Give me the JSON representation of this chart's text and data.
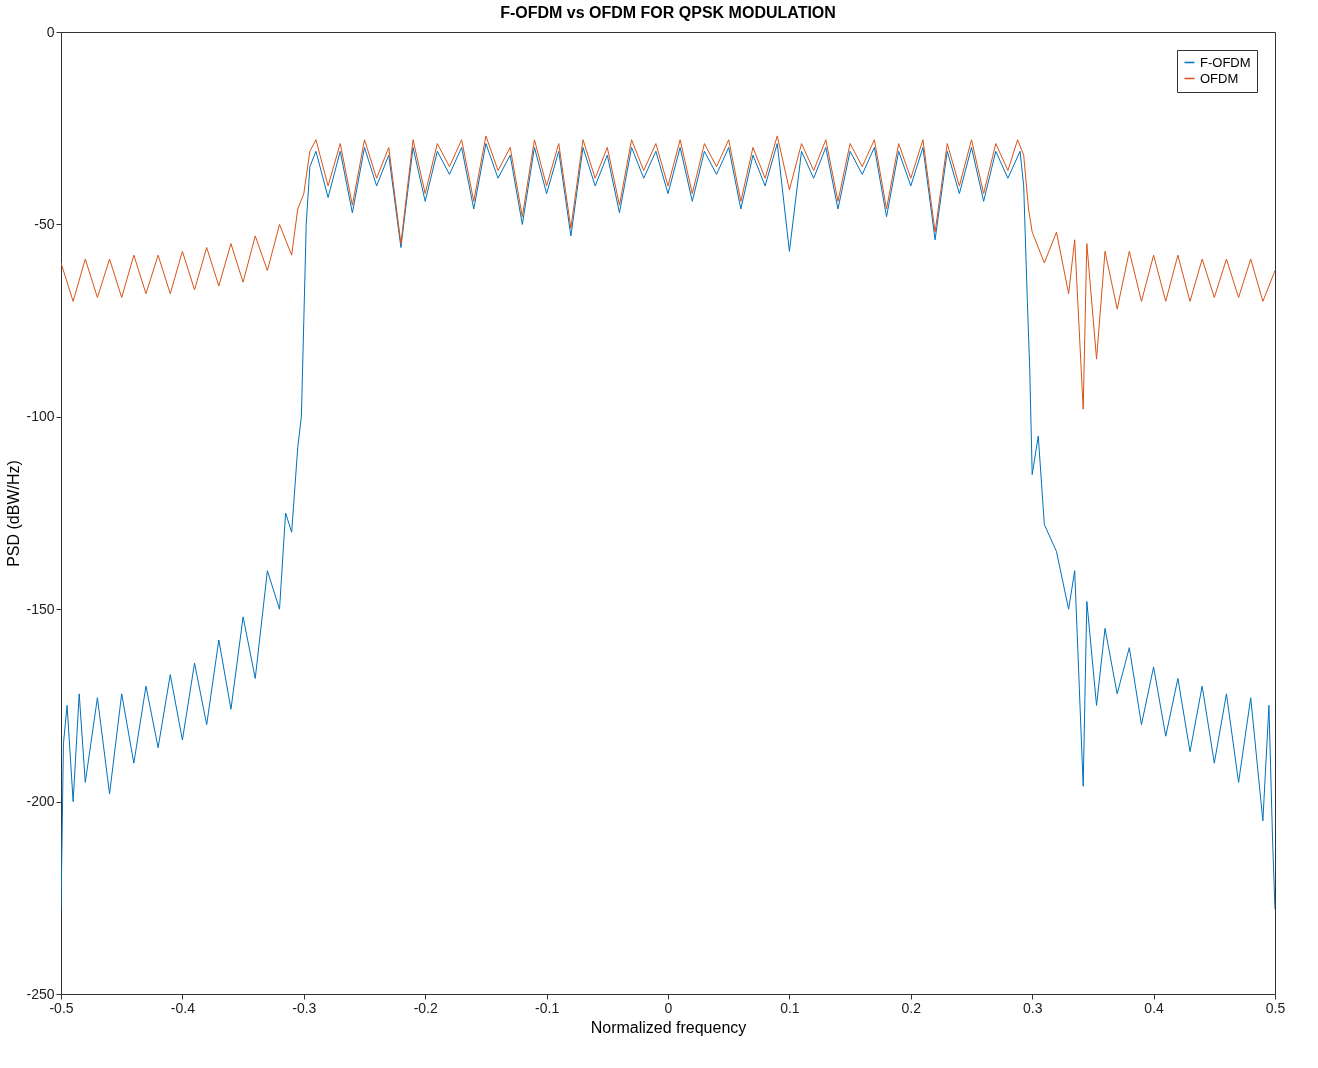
{
  "chart_data": {
    "type": "line",
    "title": "F-OFDM vs OFDM FOR QPSK MODULATION",
    "xlabel": "Normalized frequency",
    "ylabel": "PSD (dBW/Hz)",
    "xlim": [
      -0.5,
      0.5
    ],
    "xticks": [
      -0.5,
      -0.4,
      -0.3,
      -0.2,
      -0.1,
      0,
      0.1,
      0.2,
      0.3,
      0.4,
      0.5
    ],
    "ylim": [
      -250,
      0
    ],
    "yticks": [
      -250,
      -200,
      -150,
      -100,
      -50,
      0
    ],
    "grid": false,
    "legend": "top right",
    "line_style": "solid",
    "series": [
      {
        "name": "F-OFDM",
        "color": "#0072bd",
        "x": [
          -0.5,
          -0.498,
          -0.495,
          -0.49,
          -0.485,
          -0.48,
          -0.47,
          -0.46,
          -0.45,
          -0.44,
          -0.43,
          -0.42,
          -0.41,
          -0.4,
          -0.39,
          -0.38,
          -0.37,
          -0.36,
          -0.35,
          -0.34,
          -0.33,
          -0.32,
          -0.315,
          -0.31,
          -0.305,
          -0.302,
          -0.3,
          -0.298,
          -0.295,
          -0.29,
          -0.28,
          -0.27,
          -0.26,
          -0.25,
          -0.24,
          -0.23,
          -0.22,
          -0.21,
          -0.2,
          -0.19,
          -0.18,
          -0.17,
          -0.16,
          -0.15,
          -0.14,
          -0.13,
          -0.12,
          -0.11,
          -0.1,
          -0.09,
          -0.08,
          -0.07,
          -0.06,
          -0.05,
          -0.04,
          -0.03,
          -0.02,
          -0.01,
          0,
          0.01,
          0.02,
          0.03,
          0.04,
          0.05,
          0.06,
          0.07,
          0.08,
          0.09,
          0.1,
          0.11,
          0.12,
          0.13,
          0.14,
          0.15,
          0.16,
          0.17,
          0.18,
          0.19,
          0.2,
          0.21,
          0.22,
          0.23,
          0.24,
          0.25,
          0.26,
          0.27,
          0.28,
          0.29,
          0.293,
          0.296,
          0.298,
          0.3,
          0.305,
          0.31,
          0.32,
          0.33,
          0.335,
          0.342,
          0.345,
          0.353,
          0.36,
          0.37,
          0.38,
          0.39,
          0.4,
          0.41,
          0.42,
          0.43,
          0.44,
          0.45,
          0.46,
          0.47,
          0.48,
          0.49,
          0.495,
          0.498,
          0.5
        ],
        "values": [
          -228,
          -185,
          -175,
          -200,
          -172,
          -195,
          -173,
          -198,
          -172,
          -190,
          -170,
          -186,
          -167,
          -184,
          -164,
          -180,
          -158,
          -176,
          -152,
          -168,
          -140,
          -150,
          -125,
          -130,
          -108,
          -100,
          -75,
          -50,
          -35,
          -31,
          -43,
          -31,
          -47,
          -30,
          -40,
          -32,
          -56,
          -30,
          -44,
          -31,
          -37,
          -30,
          -46,
          -29,
          -38,
          -32,
          -50,
          -30,
          -42,
          -31,
          -53,
          -30,
          -40,
          -32,
          -47,
          -30,
          -38,
          -31,
          -42,
          -30,
          -44,
          -31,
          -37,
          -30,
          -46,
          -32,
          -40,
          -29,
          -57,
          -31,
          -38,
          -30,
          -46,
          -31,
          -37,
          -30,
          -48,
          -31,
          -40,
          -30,
          -54,
          -31,
          -42,
          -30,
          -44,
          -31,
          -38,
          -31,
          -40,
          -70,
          -88,
          -115,
          -105,
          -128,
          -135,
          -150,
          -140,
          -196,
          -148,
          -175,
          -155,
          -172,
          -160,
          -180,
          -165,
          -183,
          -168,
          -187,
          -170,
          -190,
          -172,
          -195,
          -173,
          -205,
          -175,
          -210,
          -228
        ]
      },
      {
        "name": "OFDM",
        "color": "#d95319",
        "x": [
          -0.5,
          -0.49,
          -0.48,
          -0.47,
          -0.46,
          -0.45,
          -0.44,
          -0.43,
          -0.42,
          -0.41,
          -0.4,
          -0.39,
          -0.38,
          -0.37,
          -0.36,
          -0.35,
          -0.34,
          -0.33,
          -0.32,
          -0.31,
          -0.305,
          -0.3,
          -0.295,
          -0.29,
          -0.28,
          -0.27,
          -0.26,
          -0.25,
          -0.24,
          -0.23,
          -0.22,
          -0.21,
          -0.2,
          -0.19,
          -0.18,
          -0.17,
          -0.16,
          -0.15,
          -0.14,
          -0.13,
          -0.12,
          -0.11,
          -0.1,
          -0.09,
          -0.08,
          -0.07,
          -0.06,
          -0.05,
          -0.04,
          -0.03,
          -0.02,
          -0.01,
          0,
          0.01,
          0.02,
          0.03,
          0.04,
          0.05,
          0.06,
          0.07,
          0.08,
          0.09,
          0.1,
          0.11,
          0.12,
          0.13,
          0.14,
          0.15,
          0.16,
          0.17,
          0.18,
          0.19,
          0.2,
          0.21,
          0.22,
          0.23,
          0.24,
          0.25,
          0.26,
          0.27,
          0.28,
          0.288,
          0.293,
          0.297,
          0.3,
          0.31,
          0.32,
          0.33,
          0.335,
          0.342,
          0.345,
          0.353,
          0.36,
          0.37,
          0.38,
          0.39,
          0.4,
          0.41,
          0.42,
          0.43,
          0.44,
          0.45,
          0.46,
          0.47,
          0.48,
          0.49,
          0.5
        ],
        "values": [
          -60,
          -70,
          -59,
          -69,
          -59,
          -69,
          -58,
          -68,
          -58,
          -68,
          -57,
          -67,
          -56,
          -66,
          -55,
          -65,
          -53,
          -62,
          -50,
          -58,
          -46,
          -42,
          -31,
          -28,
          -40,
          -29,
          -45,
          -28,
          -38,
          -30,
          -55,
          -28,
          -42,
          -29,
          -35,
          -28,
          -44,
          -27,
          -36,
          -30,
          -48,
          -28,
          -40,
          -29,
          -51,
          -28,
          -38,
          -30,
          -45,
          -28,
          -36,
          -29,
          -40,
          -28,
          -42,
          -29,
          -35,
          -28,
          -44,
          -30,
          -38,
          -27,
          -41,
          -29,
          -36,
          -28,
          -44,
          -29,
          -35,
          -28,
          -46,
          -29,
          -38,
          -28,
          -52,
          -29,
          -40,
          -28,
          -42,
          -29,
          -36,
          -28,
          -32,
          -46,
          -52,
          -60,
          -52,
          -68,
          -54,
          -98,
          -55,
          -85,
          -57,
          -72,
          -57,
          -70,
          -58,
          -70,
          -58,
          -70,
          -59,
          -69,
          -59,
          -69,
          -59,
          -70,
          -62
        ]
      }
    ]
  }
}
